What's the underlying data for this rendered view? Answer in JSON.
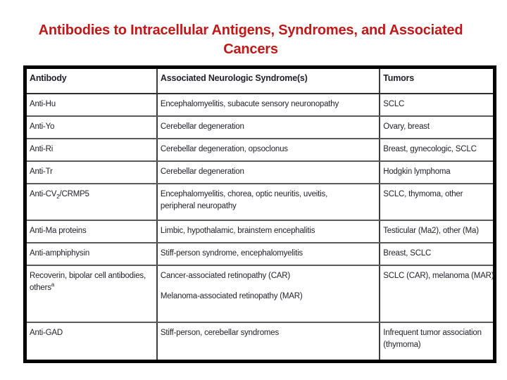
{
  "title": {
    "line1": "Antibodies to Intracellular Antigens, Syndromes, and Associated",
    "line2": "Cancers",
    "color": "#C01818"
  },
  "colors": {
    "title_red": "#C01818",
    "table_outer_border": "#000000",
    "table_inner_border": "#4a4a4a",
    "cell_text": "#232129"
  },
  "table": {
    "headers": [
      "Antibody",
      "Associated Neurologic Syndrome(s)",
      "Tumors"
    ],
    "rows": [
      {
        "antibody": [
          [
            {
              "t": "Anti-Hu"
            }
          ]
        ],
        "syndrome": [
          [
            {
              "t": "Encephalomyelitis, subacute sensory neuronopathy"
            }
          ]
        ],
        "tumors": [
          [
            {
              "t": "SCLC"
            }
          ]
        ]
      },
      {
        "antibody": [
          [
            {
              "t": "Anti-Yo"
            }
          ]
        ],
        "syndrome": [
          [
            {
              "t": "Cerebellar degeneration"
            }
          ]
        ],
        "tumors": [
          [
            {
              "t": "Ovary, breast"
            }
          ]
        ]
      },
      {
        "antibody": [
          [
            {
              "t": "Anti-Ri"
            }
          ]
        ],
        "syndrome": [
          [
            {
              "t": "Cerebellar degeneration, opsoclonus"
            }
          ]
        ],
        "tumors": [
          [
            {
              "t": "Breast, gynecologic, SCLC"
            }
          ]
        ]
      },
      {
        "antibody": [
          [
            {
              "t": "Anti-Tr"
            }
          ]
        ],
        "syndrome": [
          [
            {
              "t": "Cerebellar degeneration"
            }
          ]
        ],
        "tumors": [
          [
            {
              "t": "Hodgkin lymphoma"
            }
          ]
        ]
      },
      {
        "antibody": [
          [
            {
              "t": "Anti-CV"
            },
            {
              "t": "2",
              "v": "sub"
            },
            {
              "t": "/CRMP5"
            }
          ]
        ],
        "syndrome": [
          [
            {
              "t": "Encephalomyelitis, chorea, optic neuritis, uveitis,\nperipheral neuropathy"
            }
          ]
        ],
        "tumors": [
          [
            {
              "t": "SCLC, thymoma, other"
            }
          ]
        ]
      },
      {
        "antibody": [
          [
            {
              "t": "Anti-Ma proteins"
            }
          ]
        ],
        "syndrome": [
          [
            {
              "t": "Limbic, hypothalamic, brainstem encephalitis"
            }
          ]
        ],
        "tumors": [
          [
            {
              "t": "Testicular (Ma2), other (Ma)"
            }
          ]
        ]
      },
      {
        "antibody": [
          [
            {
              "t": "Anti-amphiphysin"
            }
          ]
        ],
        "syndrome": [
          [
            {
              "t": "Stiff-person syndrome, encephalomyelitis"
            }
          ]
        ],
        "tumors": [
          [
            {
              "t": "Breast, SCLC"
            }
          ]
        ]
      },
      {
        "antibody": [
          [
            {
              "t": "Recoverin, bipolar cell antibodies,\nothers"
            },
            {
              "t": "a",
              "v": "sup"
            }
          ]
        ],
        "syndrome": [
          [
            {
              "t": "Cancer-associated retinopathy (CAR)"
            }
          ],
          [
            {
              "t": "Melanoma-associated retinopathy (MAR)"
            }
          ]
        ],
        "tumors": [
          [
            {
              "t": "SCLC (CAR), melanoma (MAR)"
            }
          ]
        ]
      },
      {
        "antibody": [
          [
            {
              "t": "Anti-GAD"
            }
          ]
        ],
        "syndrome": [
          [
            {
              "t": "Stiff-person, cerebellar syndromes"
            }
          ]
        ],
        "tumors": [
          [
            {
              "t": "Infrequent tumor association\n(thymoma)"
            }
          ]
        ]
      }
    ]
  }
}
